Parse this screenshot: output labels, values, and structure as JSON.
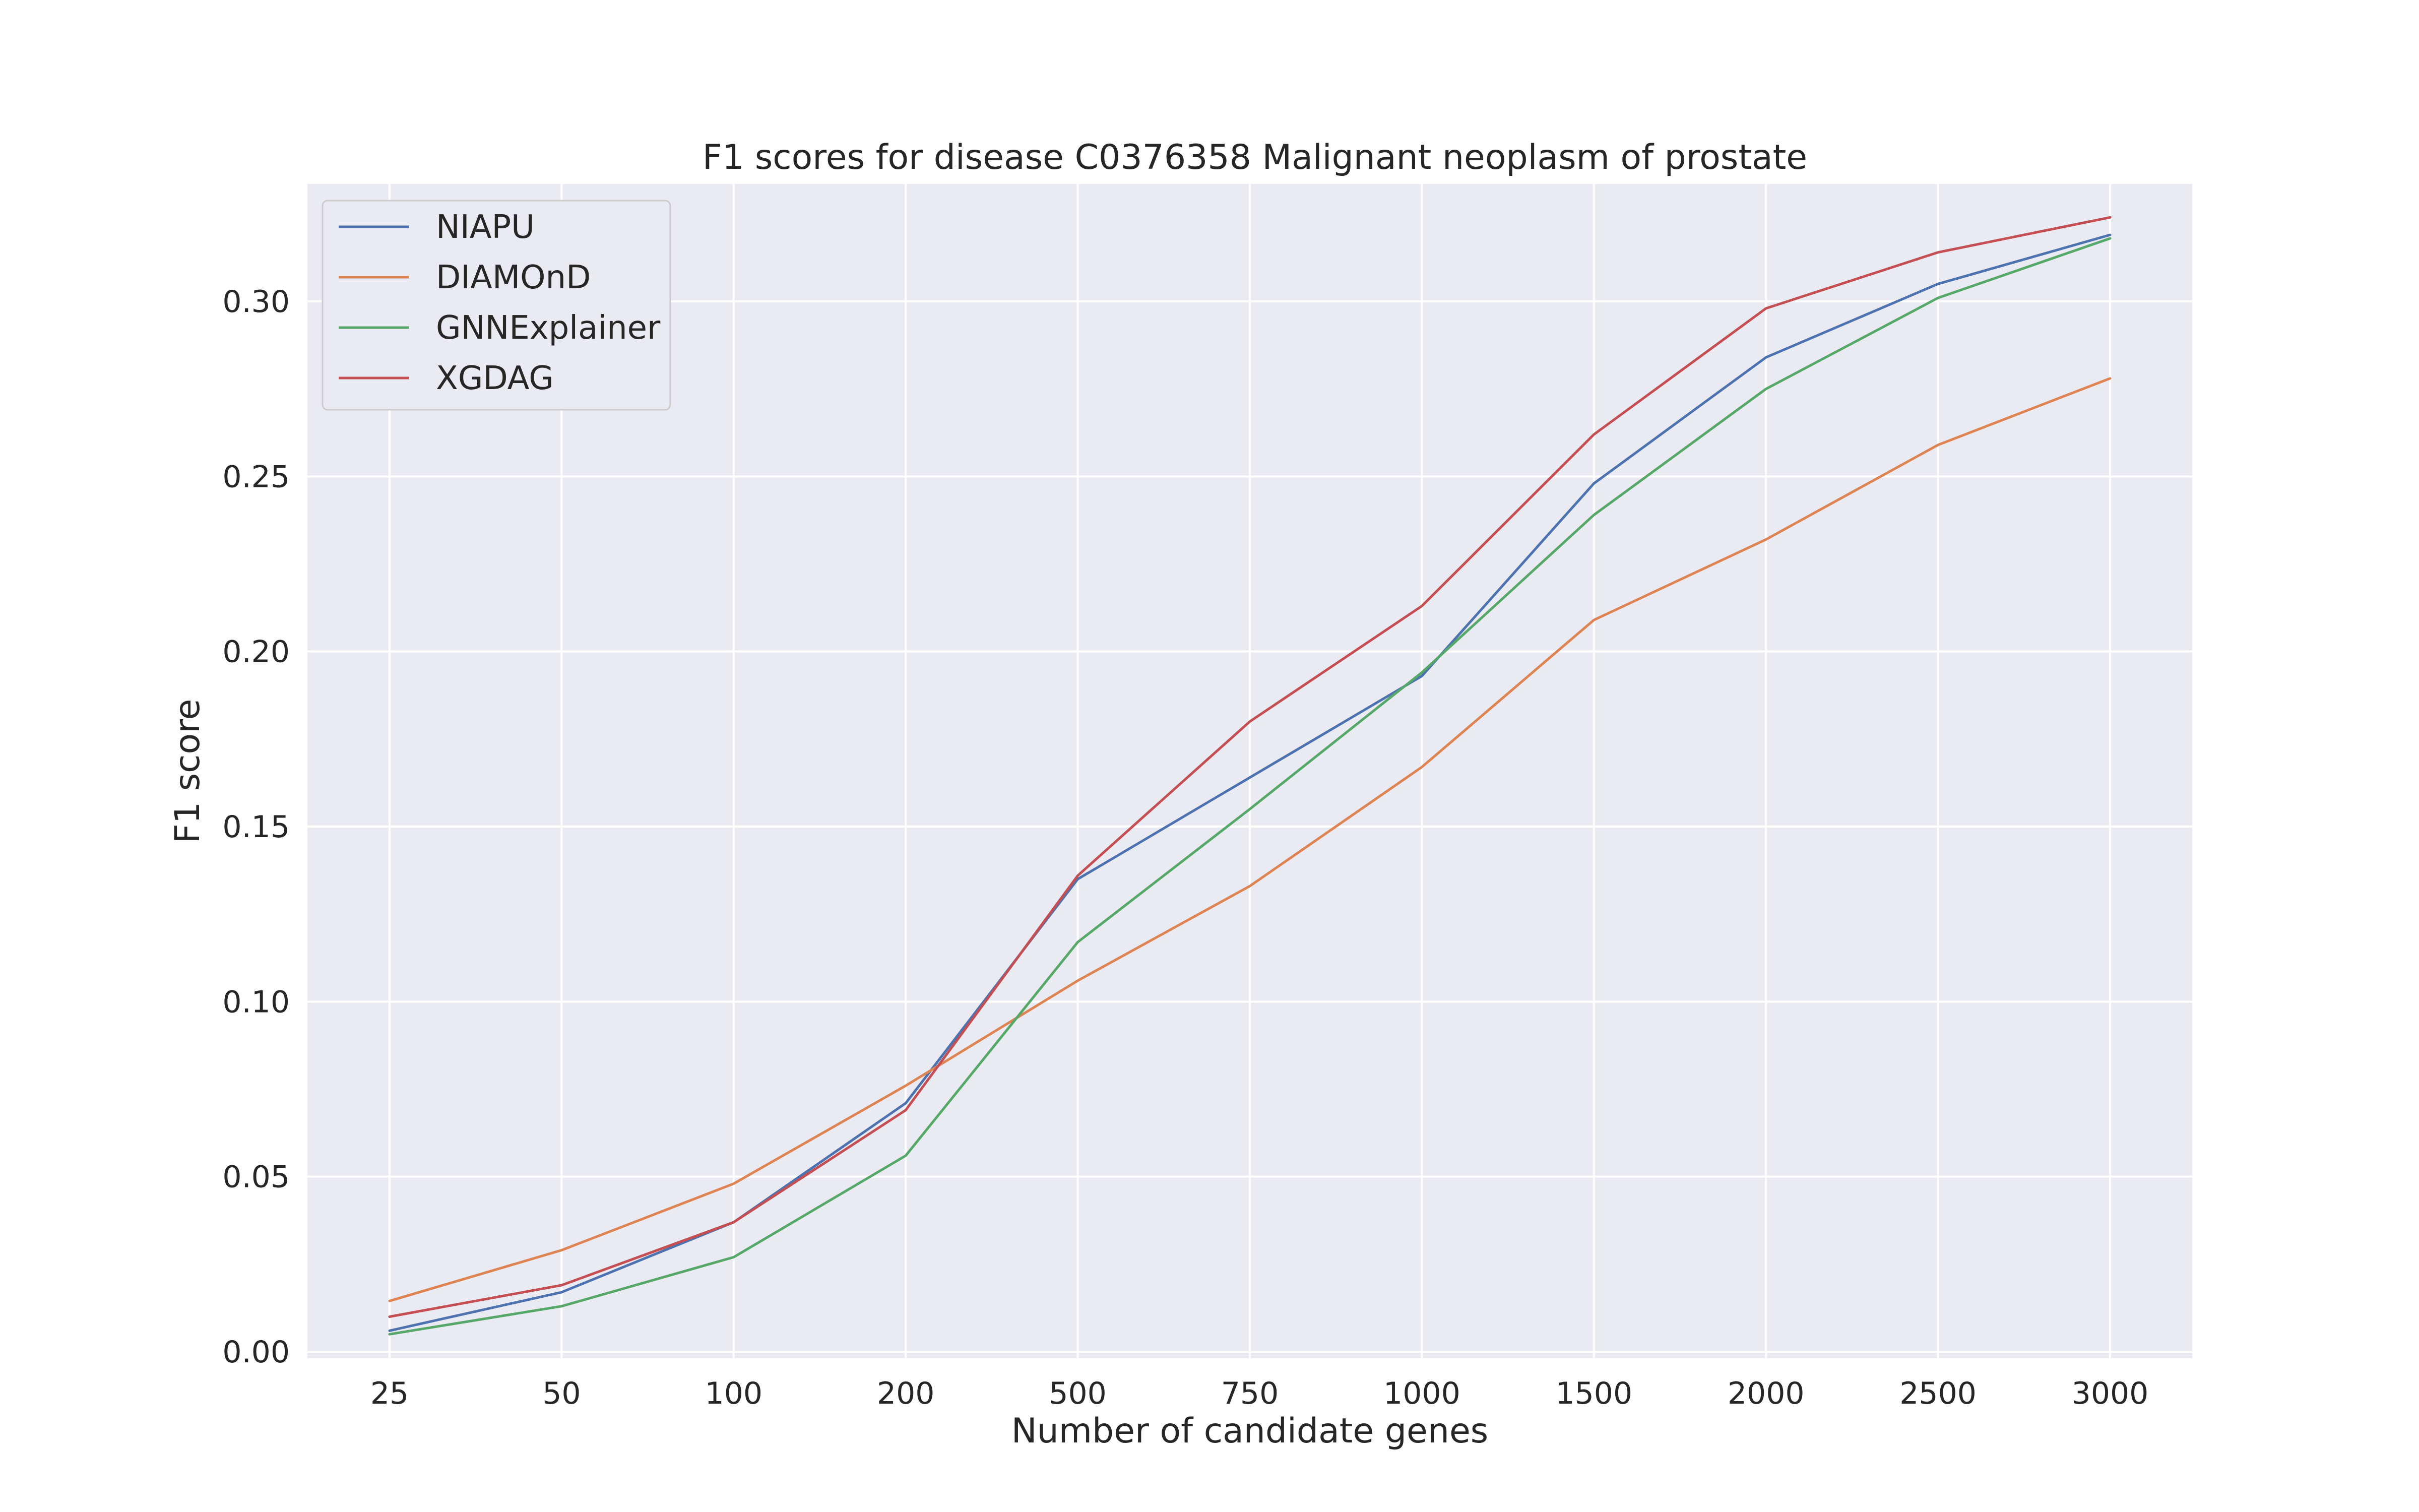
{
  "chart_data": {
    "type": "line",
    "title": "F1 scores for disease C0376358 Malignant neoplasm of prostate",
    "xlabel": "Number of candidate genes",
    "ylabel": "F1 score",
    "categories": [
      "25",
      "50",
      "100",
      "200",
      "500",
      "750",
      "1000",
      "1500",
      "2000",
      "2500",
      "3000"
    ],
    "ylim": [
      0,
      0.33
    ],
    "yticks": [
      0.0,
      0.05,
      0.1,
      0.15,
      0.2,
      0.25,
      0.3
    ],
    "ytick_labels": [
      "0.00",
      "0.05",
      "0.10",
      "0.15",
      "0.20",
      "0.25",
      "0.30"
    ],
    "grid": true,
    "legend_position": "top-left",
    "background": "#eaeaf2",
    "series": [
      {
        "name": "NIAPU",
        "color": "#4c72b0",
        "values": [
          0.006,
          0.017,
          0.037,
          0.071,
          0.135,
          0.164,
          0.193,
          0.248,
          0.284,
          0.305,
          0.319
        ]
      },
      {
        "name": "DIAMOnD",
        "color": "#dd8452",
        "values": [
          0.0145,
          0.029,
          0.048,
          0.076,
          0.106,
          0.133,
          0.167,
          0.209,
          0.232,
          0.259,
          0.278
        ]
      },
      {
        "name": "GNNExplainer",
        "color": "#55a868",
        "values": [
          0.005,
          0.013,
          0.027,
          0.056,
          0.117,
          0.155,
          0.194,
          0.239,
          0.275,
          0.301,
          0.318
        ]
      },
      {
        "name": "XGDAG",
        "color": "#c44e52",
        "values": [
          0.01,
          0.019,
          0.037,
          0.069,
          0.136,
          0.18,
          0.213,
          0.262,
          0.298,
          0.314,
          0.324
        ]
      }
    ]
  }
}
